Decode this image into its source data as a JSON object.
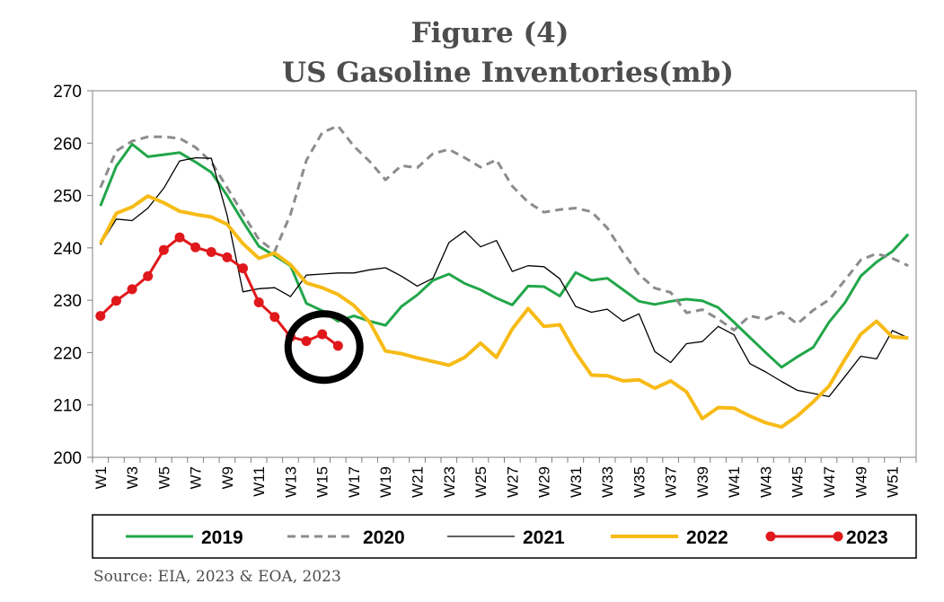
{
  "chart_data": {
    "type": "line",
    "title": "Figure (4)",
    "subtitle": "US Gasoline Inventories(mb)",
    "xlabel": "",
    "ylabel": "",
    "ylim": [
      200,
      270
    ],
    "yticks": [
      200,
      210,
      220,
      230,
      240,
      250,
      260,
      270
    ],
    "weeks": 52,
    "xticklabels": [
      "W1",
      "W3",
      "W5",
      "W7",
      "W9",
      "W11",
      "W13",
      "W15",
      "W17",
      "W19",
      "W21",
      "W23",
      "W25",
      "W27",
      "W29",
      "W31",
      "W33",
      "W35",
      "W37",
      "W39",
      "W41",
      "W43",
      "W45",
      "W47",
      "W49",
      "W51"
    ],
    "grid": false,
    "legend_position": "bottom",
    "series": [
      {
        "name": "2019",
        "color": "#22a64a",
        "style": "solid",
        "values": [
          248,
          255.6,
          259.8,
          257.4,
          257.8,
          258.2,
          256.4,
          254.4,
          250,
          245,
          240.3,
          238.5,
          236.6,
          229.4,
          228,
          226,
          227,
          226,
          225.2,
          228.8,
          231,
          233.8,
          235,
          233.2,
          232,
          230.4,
          229.1,
          232.7,
          232.6,
          230.8,
          235.3,
          233.8,
          234.2,
          232,
          229.8,
          229.2,
          229.8,
          230.2,
          229.9,
          228.6,
          225.8,
          222.9,
          220,
          217.2,
          219.2,
          221,
          225.8,
          229.5,
          234.6,
          237.3,
          239.3,
          242.6
        ]
      },
      {
        "name": "2020",
        "color": "#8c8c8c",
        "style": "dashed",
        "values": [
          251.5,
          258.5,
          260.4,
          261.2,
          261.2,
          260.9,
          259.2,
          256.4,
          251.5,
          246.5,
          241.6,
          239.3,
          246.4,
          256.7,
          262,
          263.3,
          259.4,
          256.5,
          253,
          255.7,
          255.3,
          258,
          258.8,
          257.2,
          255.4,
          256.8,
          251.8,
          248.7,
          246.8,
          247.3,
          247.6,
          246.9,
          243.8,
          239.1,
          234.9,
          232.3,
          231.5,
          227.6,
          228.2,
          226.4,
          224.3,
          227,
          226.4,
          227.7,
          225.5,
          228.1,
          230.1,
          233.8,
          237.7,
          238.9,
          238,
          236.6
        ]
      },
      {
        "name": "2021",
        "color": "#000000",
        "style": "solid",
        "values": [
          240.6,
          245.5,
          245.2,
          247.6,
          251.4,
          256.6,
          257.2,
          257.1,
          246.2,
          231.6,
          232.2,
          232.4,
          230.7,
          234.8,
          235,
          235.2,
          235.2,
          235.8,
          236.2,
          234.6,
          232.7,
          234.2,
          241,
          243.2,
          240.2,
          241.4,
          235.5,
          236.6,
          236.4,
          234.1,
          228.8,
          227.7,
          228.3,
          226,
          227.4,
          220.2,
          218.1,
          221.7,
          222.1,
          225,
          223.4,
          217.9,
          216.3,
          214.5,
          212.8,
          212.2,
          211.6,
          215.4,
          219.3,
          218.8,
          224.2,
          222.8
        ]
      },
      {
        "name": "2022",
        "color": "#f7bb17",
        "style": "solid",
        "values": [
          240.8,
          246.6,
          247.8,
          249.9,
          248.6,
          247,
          246.4,
          245.9,
          244.5,
          240.8,
          238,
          239,
          236.8,
          233.3,
          232.4,
          231.1,
          229,
          225.8,
          220.3,
          219.8,
          219,
          218.3,
          217.6,
          219.1,
          221.8,
          219.1,
          224.5,
          228.4,
          225,
          225.3,
          220,
          215.7,
          215.6,
          214.6,
          214.8,
          213.2,
          214.6,
          212.5,
          207.4,
          209.5,
          209.4,
          207.9,
          206.6,
          205.8,
          207.9,
          210.6,
          213.6,
          218.7,
          223.5,
          226,
          223,
          222.8
        ]
      },
      {
        "name": "2023",
        "color": "#e0181b",
        "style": "solid-marker",
        "values": [
          227,
          229.9,
          232.1,
          234.6,
          239.6,
          242,
          240.1,
          239.2,
          238.2,
          236.1,
          229.6,
          226.8,
          223,
          222.2,
          223.5,
          221.3
        ]
      }
    ],
    "annotation": "black circle around latest 2023 weeks (W14-W16)"
  },
  "source": "Source: EIA, 2023 & EOA, 2023"
}
